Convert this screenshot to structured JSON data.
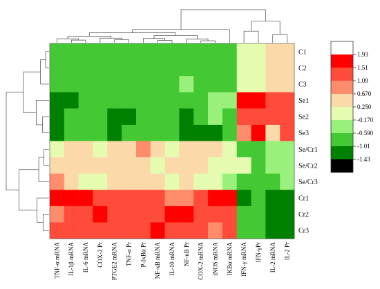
{
  "chart_data": {
    "type": "heatmap",
    "title": "",
    "rows": [
      "C1",
      "C2",
      "C3",
      "Se1",
      "Se2",
      "Se3",
      "Se/Cr1",
      "Se/Cr2",
      "Se/Cr3",
      "Cr1",
      "Cr2",
      "Cr3"
    ],
    "columns": [
      "TNF-α mRNA",
      "IL-1β mRNA",
      "IL-6 mRNA",
      "COX-2 Pr",
      "PTGE2 mRNA",
      "TNF-α Pr",
      "P-IκBα Pr",
      "NF-κB mRNA",
      "IL-10 mRNA",
      "NF-κB Pr",
      "COX-2 mRNA",
      "iNOS mRNA",
      "IKBα mRNA",
      "IFN-γ mRNA",
      "IFN-γPr",
      "IL-2 mRNA",
      "IL-2 Pr"
    ],
    "values": [
      [
        -0.59,
        -0.59,
        -0.59,
        -0.59,
        -0.59,
        -0.59,
        -0.59,
        -0.59,
        -0.59,
        -0.59,
        -0.59,
        -0.59,
        -0.59,
        0.25,
        0.25,
        0.67,
        0.67
      ],
      [
        -0.59,
        -0.59,
        -0.59,
        -0.59,
        -0.59,
        -0.59,
        -0.59,
        -0.59,
        -0.59,
        -0.59,
        -0.59,
        -0.59,
        -0.59,
        0.25,
        0.25,
        0.67,
        0.67
      ],
      [
        -0.59,
        -0.59,
        -0.59,
        -0.59,
        -0.59,
        -0.59,
        -0.59,
        -0.59,
        -0.59,
        -0.17,
        -0.59,
        -0.59,
        -0.59,
        0.25,
        0.25,
        0.67,
        0.67
      ],
      [
        -1.01,
        -1.01,
        -0.59,
        -0.59,
        -0.59,
        -0.59,
        -0.59,
        -0.59,
        -0.59,
        -0.59,
        -0.59,
        -0.17,
        -0.17,
        1.93,
        1.93,
        1.51,
        1.51
      ],
      [
        -1.01,
        -0.59,
        -0.59,
        -0.59,
        -1.01,
        -1.01,
        -0.59,
        -0.59,
        -0.59,
        -1.01,
        -0.59,
        -0.17,
        -0.59,
        1.51,
        1.51,
        1.51,
        1.51
      ],
      [
        -1.01,
        -0.59,
        -0.59,
        -0.59,
        -1.01,
        -0.59,
        -0.59,
        -0.59,
        -0.59,
        -1.01,
        -1.01,
        -1.01,
        -0.59,
        1.09,
        1.93,
        0.67,
        1.51
      ],
      [
        0.25,
        0.67,
        0.67,
        0.25,
        0.67,
        0.67,
        1.09,
        0.67,
        0.25,
        0.67,
        0.67,
        0.67,
        0.25,
        -0.59,
        -0.59,
        -0.17,
        -0.17
      ],
      [
        0.67,
        0.67,
        0.67,
        0.67,
        0.67,
        0.67,
        0.67,
        0.25,
        0.67,
        0.67,
        0.67,
        0.25,
        0.25,
        0.25,
        -0.59,
        -0.17,
        -0.17
      ],
      [
        1.09,
        0.67,
        0.25,
        0.25,
        0.67,
        0.67,
        0.67,
        0.67,
        0.25,
        0.67,
        0.25,
        0.25,
        -0.17,
        -0.59,
        -0.59,
        -0.59,
        -0.17
      ],
      [
        1.93,
        1.93,
        1.93,
        1.51,
        1.51,
        1.51,
        1.51,
        1.51,
        1.09,
        1.09,
        1.51,
        1.93,
        1.93,
        -1.01,
        -0.59,
        -1.01,
        -1.01
      ],
      [
        1.09,
        1.51,
        1.51,
        1.93,
        1.51,
        1.51,
        1.51,
        1.51,
        1.93,
        1.93,
        1.51,
        1.51,
        1.51,
        -0.59,
        -0.59,
        -1.01,
        -1.01
      ],
      [
        1.51,
        1.51,
        1.51,
        1.51,
        1.51,
        1.51,
        1.51,
        1.93,
        1.51,
        1.51,
        1.51,
        1.09,
        1.51,
        -0.59,
        -0.59,
        -1.01,
        -1.01
      ]
    ],
    "colorbar": {
      "ticks": [
        "1.93",
        "1.51",
        "1.09",
        "0.670",
        "0.250",
        "-0.170",
        "-0.590",
        "-1.01",
        "-1.43"
      ],
      "colors": [
        "#ffffff",
        "#ff0000",
        "#ff4c3a",
        "#ff8c6a",
        "#fbd9a8",
        "#e5fbb0",
        "#99f07a",
        "#44c934",
        "#008000",
        "#000000"
      ],
      "placement": "right"
    },
    "dendrograms": {
      "rows": "left",
      "columns": "top"
    }
  }
}
